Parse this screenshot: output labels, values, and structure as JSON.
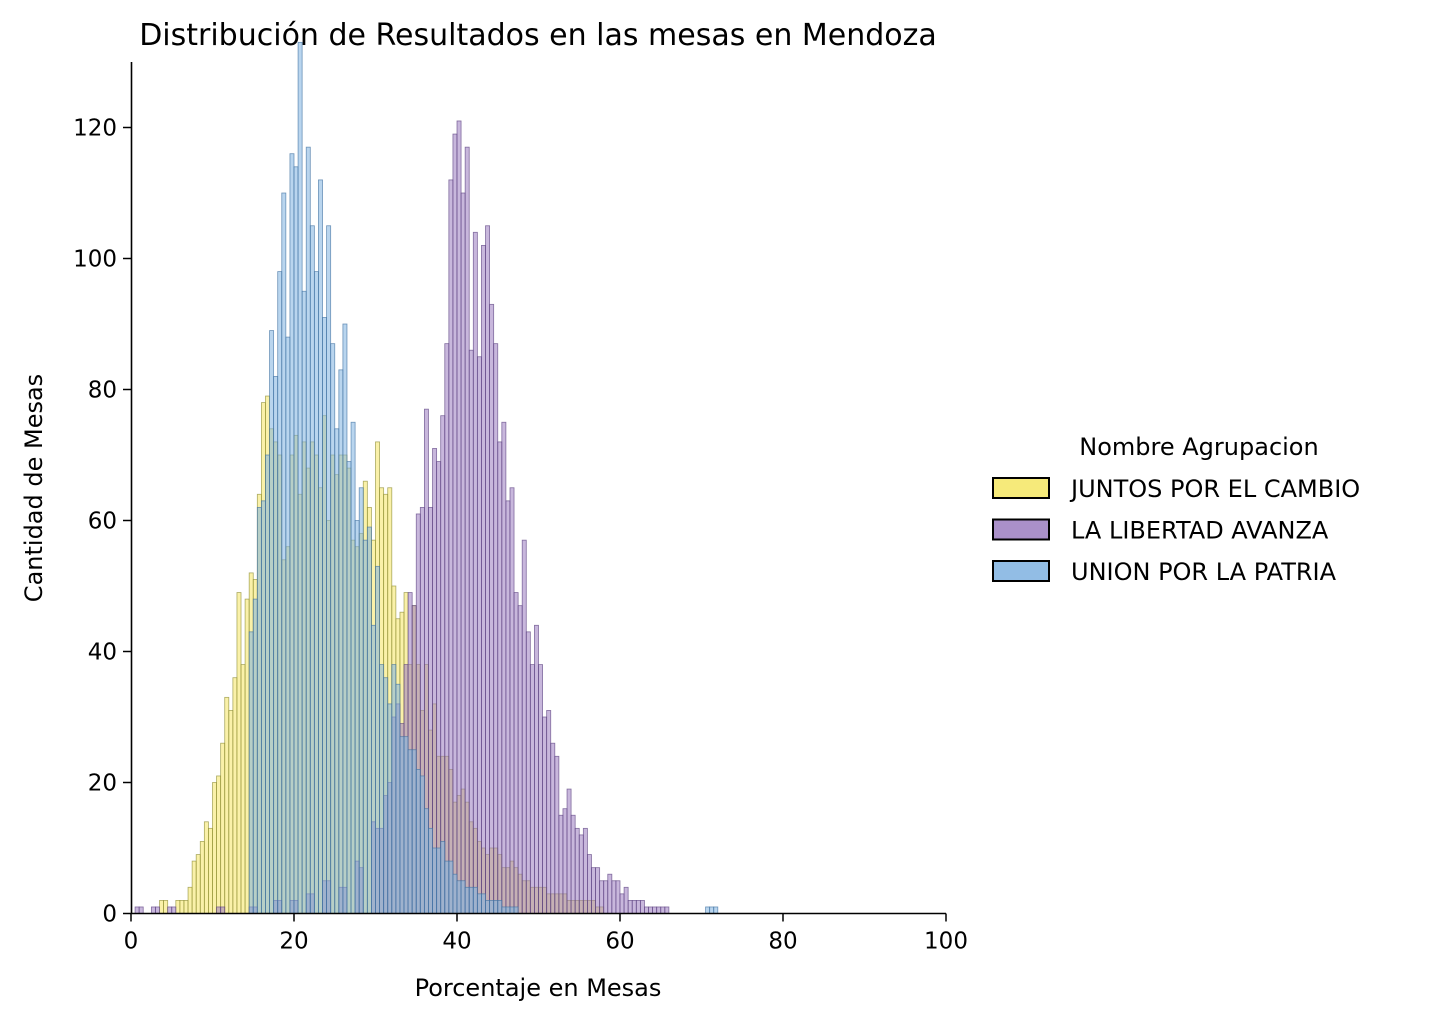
{
  "chart_data": {
    "type": "histogram",
    "title": "Distribución de Resultados en las mesas en Mendoza",
    "xlabel": "Porcentaje en Mesas",
    "ylabel": "Cantidad de Mesas",
    "xlim": [
      0,
      100
    ],
    "ylim": [
      0,
      130
    ],
    "xticks": [
      "0",
      "20",
      "40",
      "60",
      "80",
      "100"
    ],
    "yticks": [
      "0",
      "20",
      "40",
      "60",
      "80",
      "100",
      "120"
    ],
    "bin_width": 0.5,
    "grid": false,
    "legend": {
      "title": "Nombre Agrupacion",
      "position": "right",
      "entries": [
        "JUNTOS POR EL CAMBIO",
        "LA LIBERTAD AVANZA",
        "UNION POR LA PATRIA"
      ]
    },
    "series": [
      {
        "name": "JUNTOS POR EL CAMBIO",
        "color": "#f5e663",
        "edge": "#8a8a30",
        "peaks": [
          [
            3.5,
            2
          ],
          [
            5.5,
            2
          ],
          [
            6.5,
            2
          ],
          [
            7.5,
            7
          ],
          [
            8.5,
            12
          ],
          [
            9.5,
            15
          ],
          [
            10.5,
            19
          ],
          [
            11.5,
            28
          ],
          [
            12.5,
            42
          ],
          [
            13.5,
            42
          ],
          [
            14.5,
            45
          ],
          [
            15.5,
            60
          ],
          [
            16.5,
            75
          ],
          [
            17.5,
            76
          ],
          [
            18.5,
            58
          ],
          [
            19.5,
            62
          ],
          [
            20.5,
            72
          ],
          [
            21.5,
            70
          ],
          [
            22.5,
            66
          ],
          [
            23.5,
            67
          ],
          [
            24.5,
            72
          ],
          [
            25.5,
            70
          ],
          [
            26.5,
            70
          ],
          [
            27.5,
            68
          ],
          [
            28.5,
            65
          ],
          [
            29.5,
            62
          ],
          [
            30.5,
            60
          ],
          [
            31.5,
            58
          ],
          [
            32.5,
            50
          ],
          [
            33.5,
            45
          ],
          [
            34.5,
            40
          ],
          [
            35.5,
            34
          ],
          [
            36.5,
            30
          ],
          [
            37.5,
            26
          ],
          [
            38.5,
            22
          ],
          [
            39.5,
            18
          ],
          [
            40.5,
            16
          ],
          [
            41.5,
            14
          ],
          [
            42.5,
            12
          ],
          [
            43.5,
            10
          ],
          [
            44.5,
            9
          ],
          [
            45.5,
            8
          ],
          [
            46.5,
            7
          ],
          [
            47.5,
            6
          ],
          [
            48.5,
            5
          ],
          [
            49.5,
            4
          ],
          [
            50.5,
            4
          ],
          [
            51.5,
            3
          ],
          [
            52.5,
            3
          ],
          [
            53.5,
            2
          ],
          [
            54.5,
            2
          ],
          [
            55.5,
            2
          ],
          [
            56.5,
            2
          ],
          [
            57.5,
            1
          ]
        ]
      },
      {
        "name": "LA LIBERTAD AVANZA",
        "color": "#9b7cbf",
        "edge": "#5a3f7f",
        "peaks": [
          [
            0.5,
            1
          ],
          [
            2.5,
            1
          ],
          [
            4.5,
            1
          ],
          [
            10.5,
            1
          ],
          [
            14.5,
            1
          ],
          [
            17.5,
            2
          ],
          [
            19.5,
            2
          ],
          [
            21.5,
            3
          ],
          [
            23.5,
            4
          ],
          [
            25.5,
            5
          ],
          [
            27.5,
            8
          ],
          [
            29.5,
            12
          ],
          [
            30.5,
            15
          ],
          [
            31.5,
            22
          ],
          [
            32.5,
            30
          ],
          [
            33.5,
            38
          ],
          [
            34.5,
            46
          ],
          [
            35.5,
            60
          ],
          [
            36.5,
            72
          ],
          [
            37.5,
            80
          ],
          [
            38.5,
            92
          ],
          [
            39.5,
            102
          ],
          [
            40.5,
            104
          ],
          [
            41.5,
            98
          ],
          [
            42.5,
            100
          ],
          [
            43.5,
            92
          ],
          [
            44.5,
            85
          ],
          [
            45.5,
            70
          ],
          [
            46.5,
            60
          ],
          [
            47.5,
            54
          ],
          [
            48.5,
            44
          ],
          [
            49.5,
            38
          ],
          [
            50.5,
            32
          ],
          [
            51.5,
            25
          ],
          [
            52.5,
            18
          ],
          [
            53.5,
            18
          ],
          [
            54.5,
            12
          ],
          [
            55.5,
            12
          ],
          [
            56.5,
            8
          ],
          [
            57.5,
            6
          ],
          [
            58.5,
            5
          ],
          [
            59.5,
            4
          ],
          [
            60.5,
            3
          ],
          [
            61.5,
            2
          ],
          [
            62.5,
            2
          ],
          [
            63.5,
            1
          ],
          [
            64.5,
            1
          ],
          [
            65.5,
            1
          ]
        ]
      },
      {
        "name": "UNION POR LA PATRIA",
        "color": "#7fb2e0",
        "edge": "#3d6f9f",
        "peaks": [
          [
            14.5,
            42
          ],
          [
            15.5,
            58
          ],
          [
            16.5,
            70
          ],
          [
            17.5,
            85
          ],
          [
            18.5,
            100
          ],
          [
            19.5,
            110
          ],
          [
            20.5,
            118
          ],
          [
            21.5,
            105
          ],
          [
            22.5,
            100
          ],
          [
            23.5,
            98
          ],
          [
            24.5,
            95
          ],
          [
            25.5,
            80
          ],
          [
            26.5,
            72
          ],
          [
            27.5,
            65
          ],
          [
            28.5,
            58
          ],
          [
            29.5,
            50
          ],
          [
            30.5,
            45
          ],
          [
            31.5,
            38
          ],
          [
            32.5,
            32
          ],
          [
            33.5,
            27
          ],
          [
            34.5,
            22
          ],
          [
            35.5,
            18
          ],
          [
            36.5,
            14
          ],
          [
            37.5,
            11
          ],
          [
            38.5,
            9
          ],
          [
            39.5,
            7
          ],
          [
            40.5,
            5
          ],
          [
            41.5,
            4
          ],
          [
            42.5,
            3
          ],
          [
            43.5,
            2
          ],
          [
            44.5,
            2
          ],
          [
            45.5,
            1
          ],
          [
            46.5,
            1
          ],
          [
            70.5,
            1
          ],
          [
            71.5,
            1
          ]
        ]
      }
    ]
  }
}
